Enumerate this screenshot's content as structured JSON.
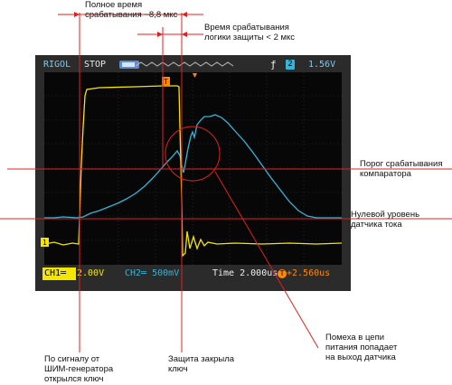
{
  "scope": {
    "brand": "RIGOL",
    "run_state": "STOP",
    "trigger_edge_icon": "rising-edge-icon",
    "trigger_channel": "2",
    "trigger_level": "1.56V",
    "ch1_label": "CH1═",
    "ch1_scale": "2.00V",
    "ch2_label": "CH2═",
    "ch2_scale": "500mV",
    "time_label": "Time",
    "time_scale": "2.000us",
    "trigger_icon": "T",
    "trigger_offset": "+2.560us",
    "ch1_marker": "1",
    "trigger_marker": "T",
    "colors": {
      "ch1": "#f5e600",
      "ch2": "#33b6d9",
      "accent": "#ff8a00",
      "annotation": "#e02020"
    }
  },
  "annotations": {
    "full_time": [
      "Полное время",
      "срабатывания ~8,8 мкс"
    ],
    "logic_time": [
      "Время срабатывания",
      "логики защиты < 2 мкс"
    ],
    "threshold": [
      "Порог срабатывания",
      "компаратора"
    ],
    "zero_level": [
      "Нулевой уровень",
      "датчика тока"
    ],
    "noise": [
      "Помеха в цепи",
      "питания попадает",
      "на выход датчика"
    ],
    "pwm_open": [
      "По сигналу от",
      "ШИМ-генератора",
      "открылся ключ"
    ],
    "protection": [
      "Защита закрыла",
      "ключ"
    ]
  }
}
